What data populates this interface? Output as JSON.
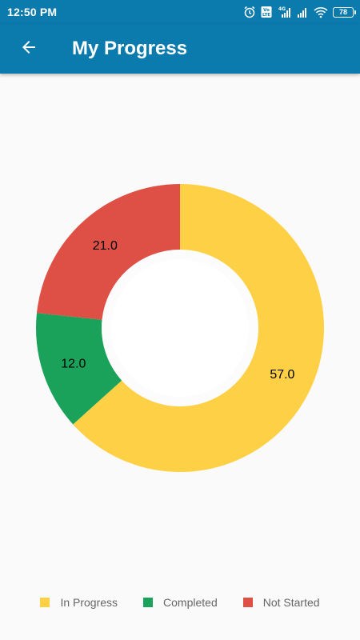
{
  "status_bar": {
    "time": "12:50 PM",
    "battery": "78",
    "icons": [
      "alarm-icon",
      "volte-icon",
      "signal-icon",
      "signal-icon",
      "wifi-icon",
      "battery-icon"
    ]
  },
  "app_bar": {
    "back_icon": "arrow-back-icon",
    "title": "My Progress"
  },
  "colors": {
    "primary": "#0b7aad",
    "in_progress": "#fed046",
    "completed": "#1aa25a",
    "not_started": "#de4f45"
  },
  "chart_data": {
    "type": "pie",
    "subtype": "donut",
    "categories": [
      "In Progress",
      "Completed",
      "Not Started"
    ],
    "values": [
      57.0,
      12.0,
      21.0
    ],
    "labels": [
      "57.0",
      "12.0",
      "21.0"
    ],
    "colors": [
      "#fed046",
      "#1aa25a",
      "#de4f45"
    ],
    "start": "top, clockwise",
    "legend": "bottom"
  },
  "legend": [
    {
      "label": "In Progress",
      "color": "#fed046"
    },
    {
      "label": "Completed",
      "color": "#1aa25a"
    },
    {
      "label": "Not Started",
      "color": "#de4f45"
    }
  ]
}
